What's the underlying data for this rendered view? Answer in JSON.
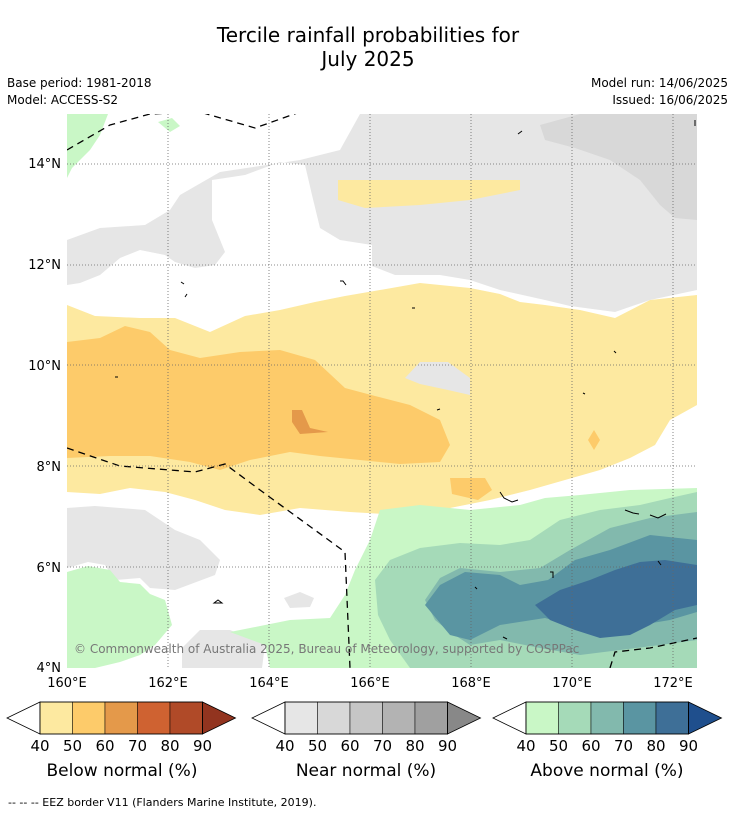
{
  "title": {
    "line1": "Tercile rainfall probabilities for",
    "line2": "July 2025"
  },
  "meta": {
    "base_period": "Base period: 1981-2018",
    "model": "Model: ACCESS-S2",
    "model_run": "Model run: 14/06/2025",
    "issued": "Issued: 16/06/2025"
  },
  "map": {
    "lat_labels": [
      "14°N",
      "12°N",
      "10°N",
      "8°N",
      "6°N",
      "4°N"
    ],
    "lon_labels": [
      "160°E",
      "162°E",
      "164°E",
      "166°E",
      "168°E",
      "170°E",
      "172°E"
    ],
    "lat_range": [
      4,
      15
    ],
    "lon_range": [
      160,
      172.5
    ],
    "copyright": "© Commonwealth of Australia 2025, Bureau of Meteorology, supported by COSPPac"
  },
  "colorbars": [
    {
      "label": "Below normal (%)",
      "ticks": [
        "40",
        "50",
        "60",
        "70",
        "80",
        "90"
      ],
      "colors": [
        "#fde9a0",
        "#fdcb6a",
        "#e4994a",
        "#cf6231",
        "#b04a28",
        "#92341f"
      ]
    },
    {
      "label": "Near normal (%)",
      "ticks": [
        "40",
        "50",
        "60",
        "70",
        "80",
        "90"
      ],
      "colors": [
        "#e6e6e6",
        "#d8d8d8",
        "#c6c6c6",
        "#b3b3b3",
        "#a0a0a0",
        "#888888"
      ]
    },
    {
      "label": "Above normal (%)",
      "ticks": [
        "40",
        "50",
        "60",
        "70",
        "80",
        "90"
      ],
      "colors": [
        "#c9f7c6",
        "#a5dab8",
        "#82b9ad",
        "#5a95a2",
        "#3e6f97",
        "#1f4f8d"
      ]
    }
  ],
  "legend": {
    "eez": "--  --  -- EEZ border V11 (Flanders Marine Institute, 2019)."
  },
  "colors": {
    "below_40": "#fde9a0",
    "below_50": "#fdcb6a",
    "below_60": "#e4994a",
    "near_40": "#e6e6e6",
    "near_50": "#d8d8d8",
    "above_40": "#c9f7c6",
    "above_50": "#a5dab8",
    "above_60": "#82b9ad",
    "above_70": "#5a95a2",
    "above_80": "#3e6f97"
  }
}
